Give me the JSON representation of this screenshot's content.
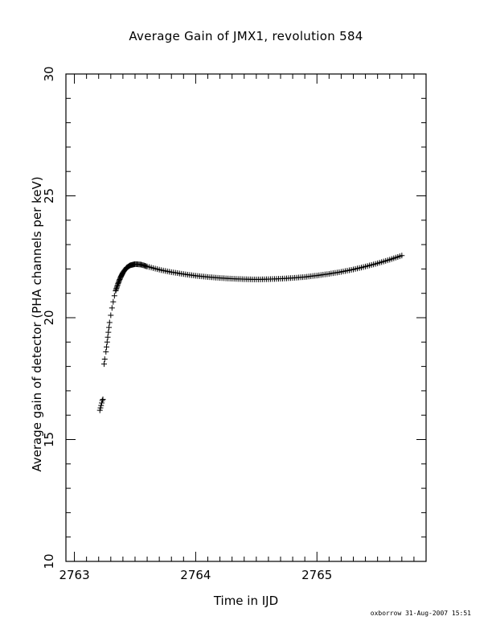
{
  "chart_data": {
    "type": "scatter",
    "title": "Average Gain of JMX1, revolution 584",
    "xlabel": "Time in IJD",
    "ylabel": "Average gain of detector (PHA channels per keV)",
    "xlim": [
      2762.93,
      2765.9
    ],
    "ylim": [
      10,
      30
    ],
    "xticks": [
      2763,
      2764,
      2765
    ],
    "yticks": [
      10,
      15,
      20,
      25,
      30
    ],
    "marker": "+",
    "color": "#000000",
    "x": [
      2763.21,
      2763.215,
      2763.22,
      2763.225,
      2763.23,
      2763.235,
      2763.245,
      2763.25,
      2763.26,
      2763.265,
      2763.27,
      2763.275,
      2763.28,
      2763.285,
      2763.29,
      2763.3,
      2763.31,
      2763.32,
      2763.33,
      2763.34,
      2763.36,
      2763.38,
      2763.4,
      2763.43,
      2763.46,
      2763.5,
      2763.55,
      2763.6,
      2763.7,
      2763.8,
      2763.9,
      2764.0,
      2764.1,
      2764.2,
      2764.3,
      2764.4,
      2764.5,
      2764.6,
      2764.7,
      2764.8,
      2764.9,
      2765.0,
      2765.1,
      2765.2,
      2765.3,
      2765.4,
      2765.5,
      2765.6,
      2765.7
    ],
    "y": [
      16.2,
      16.3,
      16.4,
      16.5,
      16.6,
      16.65,
      18.1,
      18.3,
      18.6,
      18.8,
      19.0,
      19.2,
      19.4,
      19.6,
      19.8,
      20.1,
      20.4,
      20.65,
      20.9,
      21.1,
      21.4,
      21.65,
      21.85,
      22.05,
      22.15,
      22.2,
      22.18,
      22.1,
      21.97,
      21.87,
      21.79,
      21.72,
      21.67,
      21.63,
      21.6,
      21.58,
      21.57,
      21.58,
      21.6,
      21.63,
      21.67,
      21.73,
      21.8,
      21.88,
      21.98,
      22.1,
      22.23,
      22.38,
      22.55
    ]
  },
  "footer": "oxborrow 31-Aug-2007 15:51"
}
